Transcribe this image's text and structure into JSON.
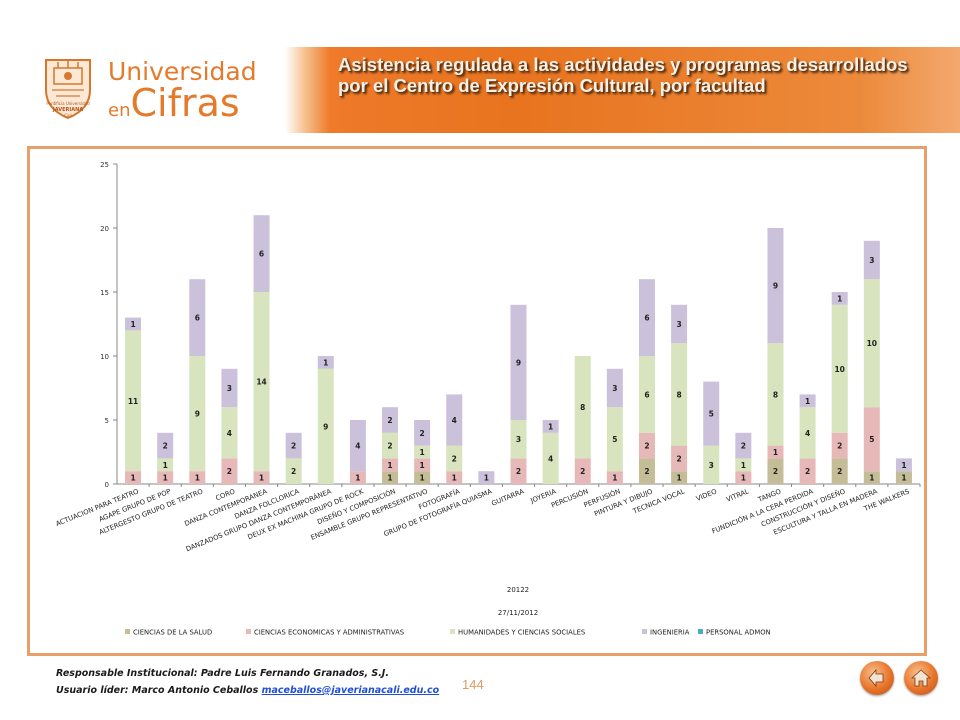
{
  "header": {
    "logo_line1": "Universidad",
    "logo_line2_small": "en",
    "logo_line2_big": "Cifras",
    "crest_text1": "Pontificia Universidad",
    "crest_text2": "JAVERIANA",
    "crest_text3": "Cali",
    "title": "Asistencia regulada a las actividades y programas desarrollados por el Centro de Expresión Cultural, por facultad"
  },
  "chart_data": {
    "type": "bar",
    "stacked": true,
    "categories": [
      "ACTUACION PARA TEATRO",
      "AGAPE GRUPO DE POP",
      "ALTERGESTO GRUPO DE TEATRO",
      "CORO",
      "DANZA CONTEMPORANEA",
      "DANZA FOLCLORICA",
      "DANZADOS GRUPO DANZA CONTEMPORÁNEA",
      "DEUX EX MACHINA GRUPO DE ROCK",
      "DISEÑO Y COMPOSICIÓN",
      "ENSAMBLE GRUPO REPRESENTATIVO",
      "FOTOGRAFÍA",
      "GRUPO DE FOTOGRAFÍA QUIASMA",
      "GUITARRA",
      "JOYERIA",
      "PERCUSIÓN",
      "PERFUSIÓN",
      "PINTURA Y DIBUJO",
      "TECNICA VOCAL",
      "VIDEO",
      "VITRAL",
      "TANGO",
      "FUNDICIÓN A LA CERA PERDIDA",
      "CONSTRUCCIÓN Y DISEÑO",
      "ESCULTURA Y TALLA EN MADERA",
      "THE WALKERS"
    ],
    "series": [
      {
        "name": "CIENCIAS DE LA SALUD",
        "color": "#c4bd97",
        "values": [
          0,
          0,
          0,
          0,
          0,
          0,
          0,
          0,
          1,
          1,
          0,
          0,
          0,
          0,
          0,
          0,
          2,
          1,
          0,
          0,
          2,
          0,
          2,
          1,
          1
        ]
      },
      {
        "name": "CIENCIAS ECONOMICAS Y ADMINISTRATIVAS",
        "color": "#e6b9b8",
        "values": [
          1,
          1,
          1,
          2,
          1,
          0,
          0,
          1,
          1,
          1,
          1,
          0,
          2,
          0,
          2,
          1,
          2,
          2,
          0,
          1,
          1,
          2,
          2,
          5,
          0
        ]
      },
      {
        "name": "HUMANIDADES Y CIENCIAS SOCIALES",
        "color": "#d7e4bd",
        "values": [
          11,
          1,
          9,
          4,
          14,
          2,
          9,
          0,
          2,
          1,
          2,
          0,
          3,
          4,
          8,
          5,
          6,
          8,
          3,
          1,
          8,
          4,
          10,
          10,
          0
        ]
      },
      {
        "name": "INGENIERIA",
        "color": "#ccc1da",
        "values": [
          1,
          2,
          6,
          3,
          6,
          2,
          1,
          4,
          2,
          2,
          4,
          1,
          9,
          1,
          0,
          3,
          6,
          3,
          5,
          2,
          9,
          1,
          1,
          3,
          1
        ]
      },
      {
        "name": "PERSONAL ADMON",
        "color": "#4bacc6",
        "values": [
          0,
          0,
          0,
          0,
          0,
          0,
          0,
          0,
          0,
          0,
          0,
          0,
          0,
          0,
          0,
          0,
          0,
          0,
          0,
          0,
          0,
          0,
          0,
          0,
          0
        ]
      }
    ],
    "ylim": [
      0,
      25
    ],
    "yticks": [
      0,
      5,
      10,
      15,
      20,
      25
    ],
    "xlabel_line1": "20122",
    "xlabel_line2": "27/11/2012",
    "grid": false,
    "legend_position": "bottom"
  },
  "footer": {
    "line1": "Responsable Institucional: Padre Luis Fernando Granados, S.J.",
    "line2_prefix": "Usuario líder: Marco Antonio Ceballos",
    "email": "maceballos@javerianacali.edu.co",
    "page_number": "144"
  },
  "nav": {
    "back_icon": "back-arrow-icon",
    "home_icon": "home-icon"
  }
}
